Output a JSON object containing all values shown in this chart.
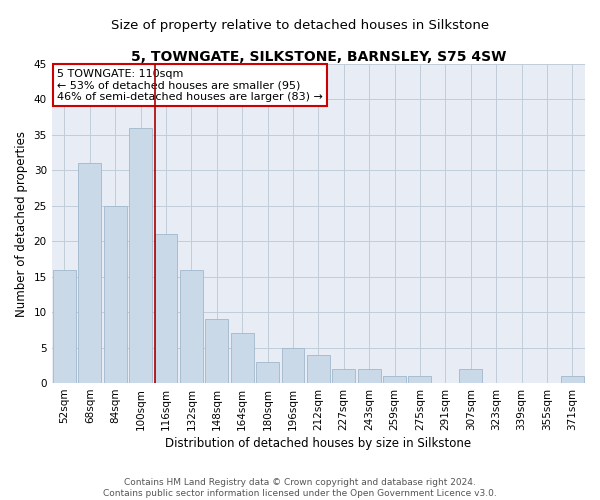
{
  "title": "5, TOWNGATE, SILKSTONE, BARNSLEY, S75 4SW",
  "subtitle": "Size of property relative to detached houses in Silkstone",
  "xlabel": "Distribution of detached houses by size in Silkstone",
  "ylabel": "Number of detached properties",
  "categories": [
    "52sqm",
    "68sqm",
    "84sqm",
    "100sqm",
    "116sqm",
    "132sqm",
    "148sqm",
    "164sqm",
    "180sqm",
    "196sqm",
    "212sqm",
    "227sqm",
    "243sqm",
    "259sqm",
    "275sqm",
    "291sqm",
    "307sqm",
    "323sqm",
    "339sqm",
    "355sqm",
    "371sqm"
  ],
  "values": [
    16,
    31,
    25,
    36,
    21,
    16,
    9,
    7,
    3,
    5,
    4,
    2,
    2,
    1,
    1,
    0,
    2,
    0,
    0,
    0,
    1
  ],
  "bar_color": "#c9d9e8",
  "bar_edgecolor": "#a0b8cc",
  "vline_color": "#aa0000",
  "annotation_text": "5 TOWNGATE: 110sqm\n← 53% of detached houses are smaller (95)\n46% of semi-detached houses are larger (83) →",
  "annotation_box_color": "#ffffff",
  "annotation_box_edgecolor": "#cc0000",
  "ylim": [
    0,
    45
  ],
  "yticks": [
    0,
    5,
    10,
    15,
    20,
    25,
    30,
    35,
    40,
    45
  ],
  "grid_color": "#c0ccd8",
  "background_color": "#e8edf5",
  "footer1": "Contains HM Land Registry data © Crown copyright and database right 2024.",
  "footer2": "Contains public sector information licensed under the Open Government Licence v3.0.",
  "title_fontsize": 10,
  "subtitle_fontsize": 9.5,
  "xlabel_fontsize": 8.5,
  "ylabel_fontsize": 8.5,
  "tick_fontsize": 7.5,
  "annotation_fontsize": 8,
  "footer_fontsize": 6.5
}
